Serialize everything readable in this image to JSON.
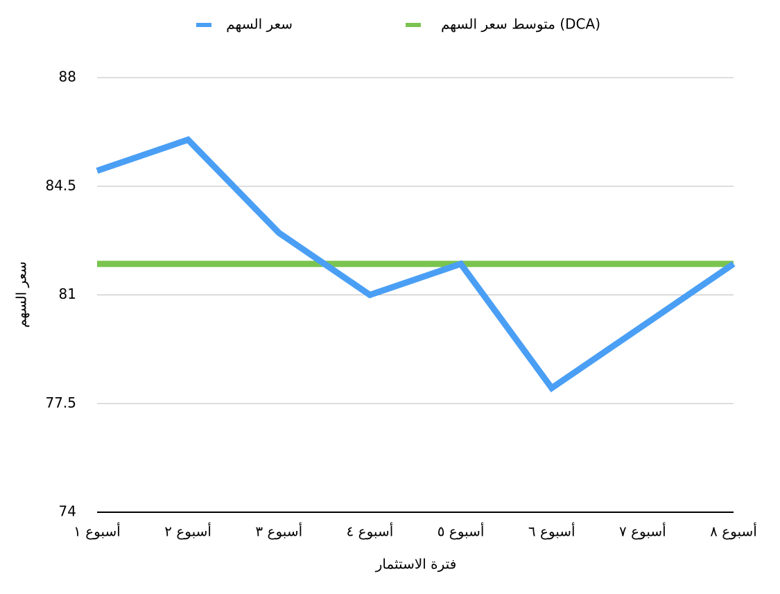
{
  "chart_data": {
    "type": "line",
    "x_label": "فترة الاستثمار",
    "y_label": "سعر السهم",
    "categories": [
      "أسبوع ١",
      "أسبوع ٢",
      "أسبوع ٣",
      "أسبوع ٤",
      "أسبوع ٥",
      "أسبوع ٦",
      "أسبوع ٧",
      "أسبوع ٨"
    ],
    "series": [
      {
        "name": "سعر السهم",
        "color": "#4a9ff5",
        "values": [
          85,
          86,
          83,
          81,
          82,
          78,
          80,
          82
        ]
      },
      {
        "name": "متوسط سعر السهم (DCA)",
        "color": "#7ac44f",
        "values": [
          82,
          82,
          82,
          82,
          82,
          82,
          82,
          82
        ]
      }
    ],
    "ylim": [
      74,
      88
    ],
    "yticks": [
      74,
      77.5,
      81,
      84.5,
      88
    ],
    "grid": true
  }
}
